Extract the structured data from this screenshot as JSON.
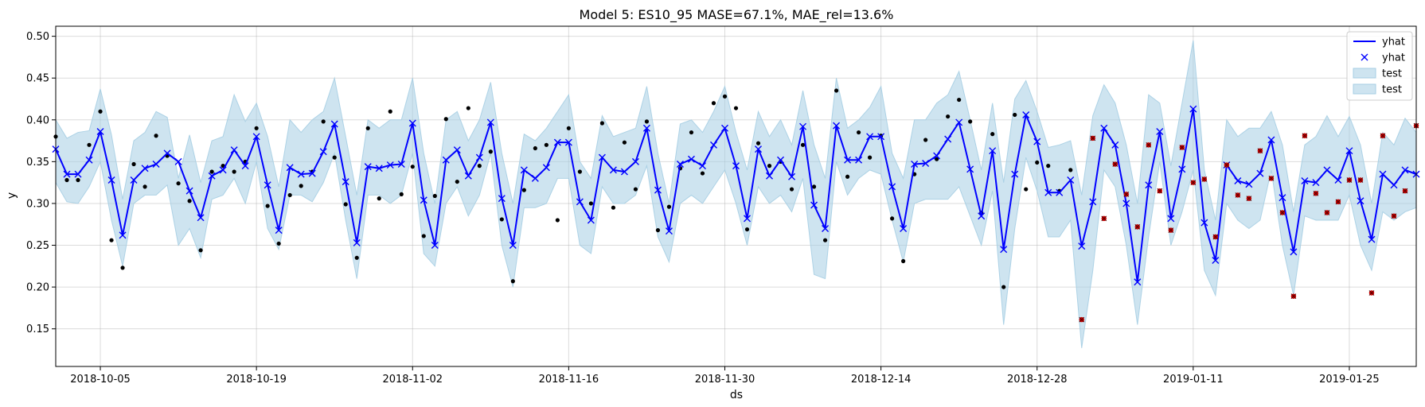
{
  "chart_data": {
    "type": "line",
    "title": "Model 5: ES10_95 MASE=67.1%, MAE_rel=13.6%",
    "xlabel": "ds",
    "ylabel": "y",
    "x_start": "2018-10-01",
    "xlim_days": [
      0,
      122
    ],
    "ylim": [
      0.105,
      0.512
    ],
    "y_ticks": [
      0.15,
      0.2,
      0.25,
      0.3,
      0.35,
      0.4,
      0.45,
      0.5
    ],
    "y_tick_labels": [
      "0.15",
      "0.20",
      "0.25",
      "0.30",
      "0.35",
      "0.40",
      "0.45",
      "0.50"
    ],
    "x_ticks": [
      "2018-10-05",
      "2018-10-19",
      "2018-11-02",
      "2018-11-16",
      "2018-11-30",
      "2018-12-14",
      "2018-12-28",
      "2019-01-11",
      "2019-01-25"
    ],
    "grid": true,
    "legend_position": "top-right",
    "legend": [
      {
        "label": "yhat",
        "kind": "line",
        "color": "#0000ff"
      },
      {
        "label": "yhat",
        "kind": "marker-x",
        "color": "#0000ff"
      },
      {
        "label": "test",
        "kind": "band",
        "color": "#a6cee3"
      },
      {
        "label": "test",
        "kind": "band",
        "color": "#a6cee3"
      }
    ],
    "colors": {
      "yhat": "#0000ff",
      "band_fill": "#a6cee3",
      "train_points": "#000000",
      "test_points": "#cc0000"
    },
    "yhat": [
      0.365,
      0.335,
      0.335,
      0.352,
      0.386,
      0.328,
      0.262,
      0.328,
      0.342,
      0.347,
      0.36,
      0.35,
      0.315,
      0.283,
      0.333,
      0.34,
      0.364,
      0.345,
      0.38,
      0.322,
      0.268,
      0.343,
      0.335,
      0.336,
      0.362,
      0.395,
      0.326,
      0.253,
      0.344,
      0.342,
      0.346,
      0.347,
      0.396,
      0.304,
      0.25,
      0.352,
      0.364,
      0.333,
      0.355,
      0.397,
      0.306,
      0.25,
      0.34,
      0.33,
      0.343,
      0.373,
      0.373,
      0.302,
      0.28,
      0.355,
      0.34,
      0.338,
      0.35,
      0.39,
      0.316,
      0.267,
      0.347,
      0.353,
      0.345,
      0.37,
      0.39,
      0.345,
      0.282,
      0.365,
      0.333,
      0.352,
      0.332,
      0.392,
      0.298,
      0.27,
      0.393,
      0.352,
      0.352,
      0.38,
      0.38,
      0.32,
      0.27,
      0.347,
      0.348,
      0.357,
      0.377,
      0.397,
      0.341,
      0.285,
      0.363,
      0.245,
      0.335,
      0.406,
      0.374,
      0.313,
      0.313,
      0.328,
      0.249,
      0.302,
      0.39,
      0.37,
      0.3,
      0.206,
      0.322,
      0.386,
      0.282,
      0.341,
      0.413,
      0.277,
      0.232,
      0.346,
      0.327,
      0.323,
      0.336,
      0.376,
      0.307,
      0.242,
      0.327,
      0.325,
      0.34,
      0.328,
      0.363,
      0.303,
      0.257,
      0.335,
      0.322,
      0.34,
      0.335
    ],
    "band_upper": [
      0.4,
      0.378,
      0.385,
      0.387,
      0.437,
      0.382,
      0.305,
      0.375,
      0.385,
      0.41,
      0.403,
      0.33,
      0.382,
      0.325,
      0.375,
      0.38,
      0.43,
      0.398,
      0.42,
      0.38,
      0.32,
      0.4,
      0.385,
      0.4,
      0.41,
      0.45,
      0.38,
      0.31,
      0.4,
      0.39,
      0.4,
      0.4,
      0.45,
      0.36,
      0.3,
      0.4,
      0.41,
      0.375,
      0.4,
      0.445,
      0.36,
      0.3,
      0.383,
      0.375,
      0.39,
      0.41,
      0.43,
      0.35,
      0.33,
      0.405,
      0.38,
      0.385,
      0.39,
      0.44,
      0.36,
      0.3,
      0.395,
      0.4,
      0.385,
      0.41,
      0.44,
      0.385,
      0.34,
      0.41,
      0.38,
      0.4,
      0.37,
      0.435,
      0.37,
      0.33,
      0.45,
      0.39,
      0.4,
      0.415,
      0.44,
      0.36,
      0.33,
      0.4,
      0.4,
      0.42,
      0.43,
      0.458,
      0.4,
      0.34,
      0.42,
      0.325,
      0.425,
      0.447,
      0.41,
      0.367,
      0.37,
      0.375,
      0.31,
      0.405,
      0.442,
      0.42,
      0.37,
      0.3,
      0.43,
      0.42,
      0.345,
      0.42,
      0.495,
      0.34,
      0.28,
      0.4,
      0.38,
      0.39,
      0.39,
      0.41,
      0.37,
      0.29,
      0.37,
      0.38,
      0.405,
      0.38,
      0.404,
      0.37,
      0.3,
      0.385,
      0.37,
      0.402,
      0.385
    ],
    "band_lower": [
      0.325,
      0.302,
      0.3,
      0.32,
      0.35,
      0.28,
      0.225,
      0.3,
      0.31,
      0.31,
      0.322,
      0.25,
      0.27,
      0.235,
      0.305,
      0.31,
      0.33,
      0.3,
      0.35,
      0.27,
      0.245,
      0.31,
      0.31,
      0.302,
      0.325,
      0.36,
      0.28,
      0.21,
      0.31,
      0.31,
      0.3,
      0.31,
      0.36,
      0.24,
      0.225,
      0.3,
      0.32,
      0.285,
      0.31,
      0.36,
      0.25,
      0.2,
      0.295,
      0.295,
      0.3,
      0.33,
      0.33,
      0.25,
      0.24,
      0.32,
      0.3,
      0.3,
      0.31,
      0.345,
      0.26,
      0.23,
      0.3,
      0.31,
      0.3,
      0.32,
      0.34,
      0.3,
      0.25,
      0.32,
      0.3,
      0.31,
      0.29,
      0.33,
      0.215,
      0.21,
      0.35,
      0.31,
      0.33,
      0.34,
      0.335,
      0.28,
      0.23,
      0.3,
      0.305,
      0.305,
      0.305,
      0.32,
      0.285,
      0.25,
      0.315,
      0.155,
      0.27,
      0.355,
      0.315,
      0.26,
      0.26,
      0.28,
      0.127,
      0.22,
      0.34,
      0.32,
      0.25,
      0.155,
      0.26,
      0.35,
      0.25,
      0.29,
      0.34,
      0.22,
      0.19,
      0.3,
      0.28,
      0.27,
      0.28,
      0.34,
      0.25,
      0.19,
      0.285,
      0.28,
      0.28,
      0.28,
      0.31,
      0.25,
      0.22,
      0.29,
      0.28,
      0.29,
      0.295
    ],
    "train_points": [
      [
        0,
        0.38
      ],
      [
        1,
        0.328
      ],
      [
        2,
        0.328
      ],
      [
        3,
        0.37
      ],
      [
        4,
        0.41
      ],
      [
        5,
        0.256
      ],
      [
        6,
        0.223
      ],
      [
        7,
        0.347
      ],
      [
        8,
        0.32
      ],
      [
        9,
        0.381
      ],
      [
        10,
        0.357
      ],
      [
        11,
        0.324
      ],
      [
        12,
        0.303
      ],
      [
        13,
        0.244
      ],
      [
        14,
        0.338
      ],
      [
        15,
        0.345
      ],
      [
        16,
        0.338
      ],
      [
        17,
        0.35
      ],
      [
        18,
        0.39
      ],
      [
        19,
        0.297
      ],
      [
        20,
        0.252
      ],
      [
        21,
        0.31
      ],
      [
        22,
        0.321
      ],
      [
        23,
        0.338
      ],
      [
        24,
        0.398
      ],
      [
        25,
        0.355
      ],
      [
        26,
        0.299
      ],
      [
        27,
        0.235
      ],
      [
        28,
        0.39
      ],
      [
        29,
        0.306
      ],
      [
        30,
        0.41
      ],
      [
        31,
        0.311
      ],
      [
        32,
        0.344
      ],
      [
        33,
        0.261
      ],
      [
        34,
        0.309
      ],
      [
        35,
        0.401
      ],
      [
        36,
        0.326
      ],
      [
        37,
        0.414
      ],
      [
        38,
        0.345
      ],
      [
        39,
        0.362
      ],
      [
        40,
        0.281
      ],
      [
        41,
        0.207
      ],
      [
        42,
        0.316
      ],
      [
        43,
        0.366
      ],
      [
        44,
        0.37
      ],
      [
        45,
        0.28
      ],
      [
        46,
        0.39
      ],
      [
        47,
        0.338
      ],
      [
        48,
        0.3
      ],
      [
        49,
        0.396
      ],
      [
        50,
        0.295
      ],
      [
        51,
        0.373
      ],
      [
        52,
        0.317
      ],
      [
        53,
        0.398
      ],
      [
        54,
        0.268
      ],
      [
        55,
        0.296
      ],
      [
        56,
        0.342
      ],
      [
        57,
        0.385
      ],
      [
        58,
        0.336
      ],
      [
        59,
        0.42
      ],
      [
        60,
        0.428
      ],
      [
        61,
        0.414
      ],
      [
        62,
        0.269
      ],
      [
        63,
        0.372
      ],
      [
        64,
        0.345
      ],
      [
        65,
        0.35
      ],
      [
        66,
        0.317
      ],
      [
        67,
        0.37
      ],
      [
        68,
        0.32
      ],
      [
        69,
        0.256
      ],
      [
        70,
        0.435
      ],
      [
        71,
        0.332
      ],
      [
        72,
        0.385
      ],
      [
        73,
        0.355
      ],
      [
        74,
        0.381
      ],
      [
        75,
        0.282
      ],
      [
        76,
        0.231
      ],
      [
        77,
        0.335
      ],
      [
        78,
        0.376
      ],
      [
        79,
        0.353
      ],
      [
        80,
        0.404
      ],
      [
        81,
        0.424
      ],
      [
        82,
        0.398
      ],
      [
        83,
        0.289
      ],
      [
        84,
        0.383
      ],
      [
        85,
        0.2
      ],
      [
        86,
        0.406
      ],
      [
        87,
        0.317
      ],
      [
        88,
        0.349
      ],
      [
        89,
        0.345
      ],
      [
        90,
        0.315
      ],
      [
        91,
        0.34
      ]
    ],
    "test_points": [
      [
        92,
        0.161
      ],
      [
        93,
        0.378
      ],
      [
        94,
        0.282
      ],
      [
        95,
        0.347
      ],
      [
        96,
        0.311
      ],
      [
        97,
        0.272
      ],
      [
        98,
        0.37
      ],
      [
        99,
        0.315
      ],
      [
        100,
        0.268
      ],
      [
        101,
        0.367
      ],
      [
        102,
        0.325
      ],
      [
        103,
        0.329
      ],
      [
        104,
        0.26
      ],
      [
        105,
        0.346
      ],
      [
        106,
        0.31
      ],
      [
        107,
        0.306
      ],
      [
        108,
        0.363
      ],
      [
        109,
        0.33
      ],
      [
        110,
        0.289
      ],
      [
        111,
        0.189
      ],
      [
        112,
        0.381
      ],
      [
        113,
        0.312
      ],
      [
        114,
        0.289
      ],
      [
        115,
        0.302
      ],
      [
        116,
        0.328
      ],
      [
        117,
        0.328
      ],
      [
        118,
        0.193
      ],
      [
        119,
        0.381
      ],
      [
        120,
        0.285
      ],
      [
        121,
        0.315
      ],
      [
        122,
        0.393
      ]
    ]
  }
}
